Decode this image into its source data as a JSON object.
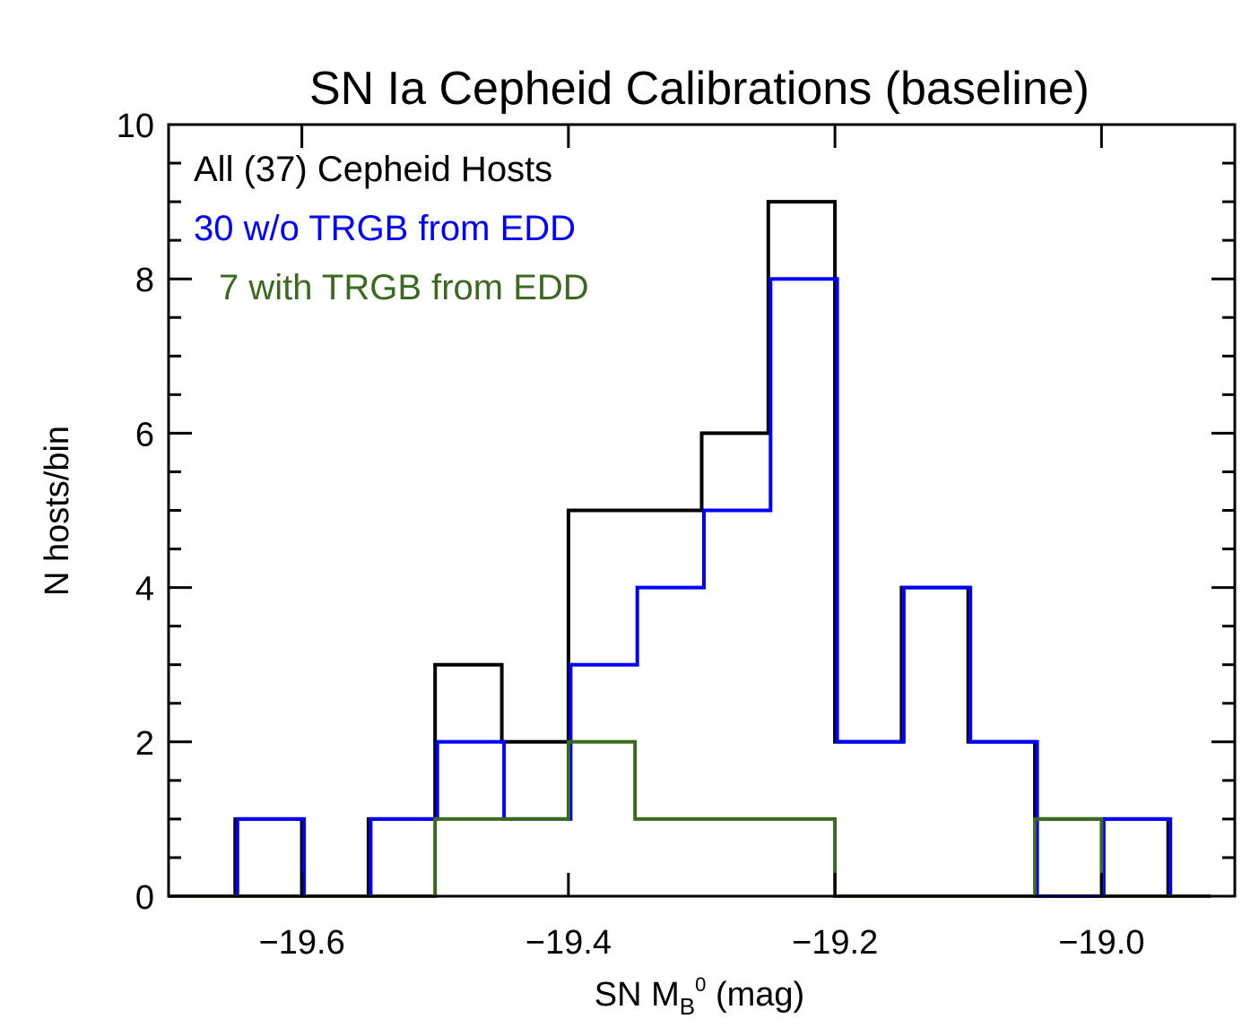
{
  "chart_data": {
    "type": "bar",
    "histogram": true,
    "title": "SN Ia Cepheid Calibrations (baseline)",
    "xlabel": {
      "prefix": "SN M",
      "sub": "B",
      "sup": "0",
      "suffix": " (mag)"
    },
    "ylabel": "N hosts/bin",
    "xlim": [
      -19.7,
      -18.92
    ],
    "ylim": [
      0,
      10
    ],
    "x_ticks": [
      -19.6,
      -19.4,
      -19.2,
      -19.0
    ],
    "x_tick_labels": [
      "−19.6",
      "−19.4",
      "−19.2",
      "−19.0"
    ],
    "y_ticks": [
      0,
      2,
      4,
      6,
      8,
      10
    ],
    "y_tick_labels": [
      "0",
      "2",
      "4",
      "6",
      "8",
      "10"
    ],
    "bin_edges": [
      -19.7,
      -19.65,
      -19.6,
      -19.55,
      -19.5,
      -19.45,
      -19.4,
      -19.35,
      -19.3,
      -19.25,
      -19.2,
      -19.15,
      -19.1,
      -19.05,
      -19.0,
      -18.95,
      -18.92
    ],
    "legend_position": "top-left",
    "series": [
      {
        "name": "All (37) Cepheid Hosts",
        "color": "#000000",
        "values": [
          0,
          1,
          0,
          1,
          3,
          2,
          5,
          5,
          6,
          9,
          2,
          4,
          2,
          1,
          1,
          0
        ]
      },
      {
        "name": "30 w/o TRGB from EDD",
        "color": "#0000ff",
        "values": [
          0,
          1,
          0,
          1,
          2,
          1,
          3,
          4,
          5,
          8,
          2,
          4,
          2,
          0,
          1,
          0
        ]
      },
      {
        "name": "7 with TRGB from EDD",
        "color": "#3a6a1e",
        "indent": true,
        "values": [
          0,
          0,
          0,
          0,
          1,
          1,
          2,
          1,
          1,
          1,
          0,
          0,
          0,
          1,
          0,
          0
        ]
      }
    ]
  }
}
